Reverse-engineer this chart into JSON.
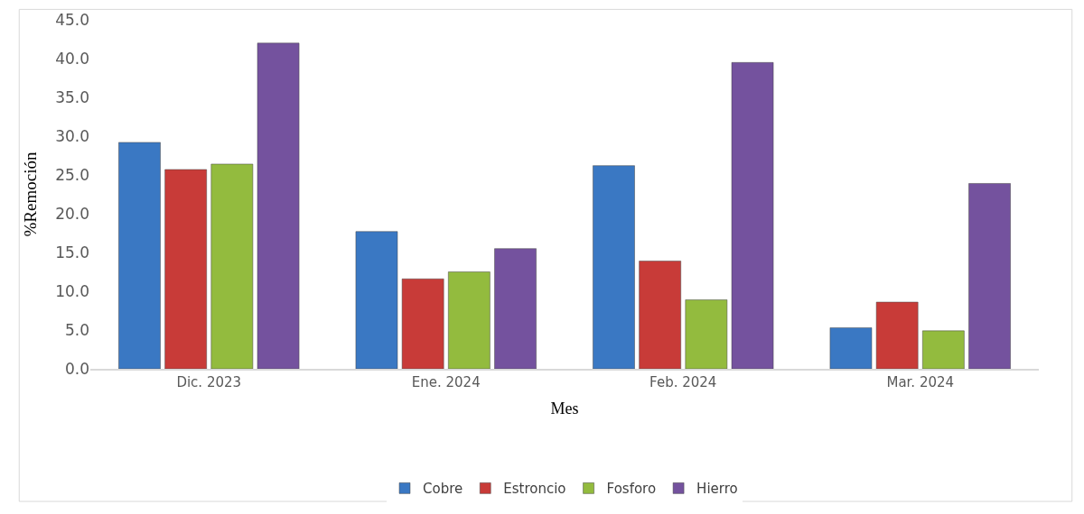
{
  "chart_data": {
    "type": "bar",
    "xlabel": "Mes",
    "ylabel": "%Remoción",
    "categories": [
      "Dic. 2023",
      "Ene. 2024",
      "Feb. 2024",
      "Mar. 2024"
    ],
    "series": [
      {
        "name": "Cobre",
        "color": "#3a78c3",
        "values": [
          29.2,
          17.7,
          26.2,
          5.3
        ]
      },
      {
        "name": "Estroncio",
        "color": "#c83b38",
        "values": [
          25.7,
          11.6,
          13.9,
          8.6
        ]
      },
      {
        "name": "Fosforo",
        "color": "#93bb3e",
        "values": [
          26.4,
          12.5,
          8.9,
          4.9
        ]
      },
      {
        "name": "Hierro",
        "color": "#74529e",
        "values": [
          42.0,
          15.5,
          39.5,
          23.9
        ]
      }
    ],
    "ylim": [
      0,
      45
    ],
    "yticks": [
      {
        "value": 0,
        "label": "0.0"
      },
      {
        "value": 5,
        "label": "5.0"
      },
      {
        "value": 10,
        "label": "10.0"
      },
      {
        "value": 15,
        "label": "15.0"
      },
      {
        "value": 20,
        "label": "20.0"
      },
      {
        "value": 25,
        "label": "25.0"
      },
      {
        "value": 30,
        "label": "30.0"
      },
      {
        "value": 35,
        "label": "35.0"
      },
      {
        "value": 40,
        "label": "40.0"
      },
      {
        "value": 45,
        "label": "45.0"
      }
    ],
    "grid": false,
    "legend": "bottom"
  }
}
